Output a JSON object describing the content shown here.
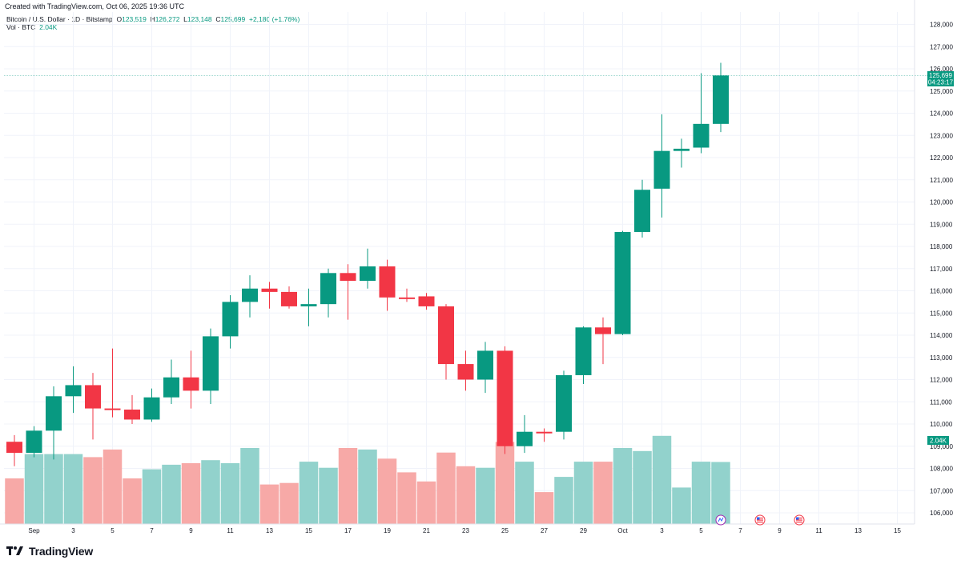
{
  "header": {
    "created_text": "Created with TradingView.com, Oct 06, 2025 19:36 UTC"
  },
  "legend": {
    "symbol": "Bitcoin / U.S. Dollar · 1D · Bitstamp",
    "o_label": "O",
    "o_value": "123,519",
    "h_label": "H",
    "h_value": "126,272",
    "l_label": "L",
    "l_value": "123,148",
    "c_label": "C",
    "c_value": "125,699",
    "change": "+2,180 (+1.76%)",
    "vol_label": "Vol · BTC",
    "vol_value": "2.04K"
  },
  "price_tag": {
    "price": "125,699",
    "countdown": "04:23:17"
  },
  "volume_tag": "2.04K",
  "footer": {
    "brand": "TradingView"
  },
  "colors": {
    "up": "#089981",
    "down": "#f23645",
    "up_vol": "#92d2cc",
    "down_vol": "#f7a9a7",
    "grid": "#f0f3fa",
    "last_line": "#089981"
  },
  "chart_data": {
    "type": "candlestick",
    "symbol": "Bitcoin / U.S. Dollar · 1D · Bitstamp",
    "y_ticks": [
      106000,
      107000,
      108000,
      109000,
      110000,
      111000,
      112000,
      113000,
      114000,
      115000,
      116000,
      117000,
      118000,
      119000,
      120000,
      121000,
      122000,
      123000,
      124000,
      125000,
      126000,
      127000,
      128000
    ],
    "y_tick_labels": [
      "106,000",
      "107,000",
      "108,000",
      "109,000",
      "110,000",
      "111,000",
      "112,000",
      "113,000",
      "114,000",
      "115,000",
      "116,000",
      "117,000",
      "118,000",
      "119,000",
      "120,000",
      "121,000",
      "122,000",
      "123,000",
      "124,000",
      "125,000",
      "126,000",
      "127,000",
      "128,000"
    ],
    "x_ticks": [
      {
        "day": 1,
        "label": "Sep"
      },
      {
        "day": 3,
        "label": "3"
      },
      {
        "day": 5,
        "label": "5"
      },
      {
        "day": 7,
        "label": "7"
      },
      {
        "day": 9,
        "label": "9"
      },
      {
        "day": 11,
        "label": "11"
      },
      {
        "day": 13,
        "label": "13"
      },
      {
        "day": 15,
        "label": "15"
      },
      {
        "day": 17,
        "label": "17"
      },
      {
        "day": 19,
        "label": "19"
      },
      {
        "day": 21,
        "label": "21"
      },
      {
        "day": 23,
        "label": "23"
      },
      {
        "day": 25,
        "label": "25"
      },
      {
        "day": 27,
        "label": "27"
      },
      {
        "day": 29,
        "label": "29"
      },
      {
        "day": 31,
        "label": "Oct"
      },
      {
        "day": 33,
        "label": "3"
      },
      {
        "day": 35,
        "label": "5"
      },
      {
        "day": 37,
        "label": "7"
      },
      {
        "day": 39,
        "label": "9"
      },
      {
        "day": 41,
        "label": "11"
      },
      {
        "day": 43,
        "label": "13"
      },
      {
        "day": 45,
        "label": "15"
      }
    ],
    "candles": [
      {
        "date": "2025-08-31",
        "o": 109200,
        "h": 109500,
        "l": 108100,
        "c": 108700,
        "v": 1.5
      },
      {
        "date": "2025-09-01",
        "o": 108700,
        "h": 109900,
        "l": 108500,
        "c": 109700,
        "v": 2.3
      },
      {
        "date": "2025-09-02",
        "o": 109700,
        "h": 111700,
        "l": 108400,
        "c": 111250,
        "v": 2.3
      },
      {
        "date": "2025-09-03",
        "o": 111250,
        "h": 112600,
        "l": 110500,
        "c": 111750,
        "v": 2.3
      },
      {
        "date": "2025-09-04",
        "o": 111750,
        "h": 112300,
        "l": 109300,
        "c": 110700,
        "v": 2.2
      },
      {
        "date": "2025-09-05",
        "o": 110700,
        "h": 113400,
        "l": 110300,
        "c": 110650,
        "v": 2.45
      },
      {
        "date": "2025-09-06",
        "o": 110650,
        "h": 111300,
        "l": 110000,
        "c": 110200,
        "v": 1.5
      },
      {
        "date": "2025-09-07",
        "o": 110200,
        "h": 111600,
        "l": 110100,
        "c": 111200,
        "v": 1.8
      },
      {
        "date": "2025-09-08",
        "o": 111200,
        "h": 112900,
        "l": 110900,
        "c": 112100,
        "v": 1.95
      },
      {
        "date": "2025-09-09",
        "o": 112100,
        "h": 113300,
        "l": 110700,
        "c": 111500,
        "v": 2.0
      },
      {
        "date": "2025-09-10",
        "o": 111500,
        "h": 114300,
        "l": 110900,
        "c": 113950,
        "v": 2.1
      },
      {
        "date": "2025-09-11",
        "o": 113950,
        "h": 115800,
        "l": 113400,
        "c": 115500,
        "v": 2.0
      },
      {
        "date": "2025-09-12",
        "o": 115500,
        "h": 116700,
        "l": 114800,
        "c": 116100,
        "v": 2.5
      },
      {
        "date": "2025-09-13",
        "o": 116100,
        "h": 116400,
        "l": 115200,
        "c": 115950,
        "v": 1.3
      },
      {
        "date": "2025-09-14",
        "o": 115950,
        "h": 116200,
        "l": 115200,
        "c": 115300,
        "v": 1.35
      },
      {
        "date": "2025-09-15",
        "o": 115300,
        "h": 116100,
        "l": 114400,
        "c": 115400,
        "v": 2.05
      },
      {
        "date": "2025-09-16",
        "o": 115400,
        "h": 117000,
        "l": 114800,
        "c": 116800,
        "v": 1.85
      },
      {
        "date": "2025-09-17",
        "o": 116800,
        "h": 117200,
        "l": 114700,
        "c": 116450,
        "v": 2.5
      },
      {
        "date": "2025-09-18",
        "o": 116450,
        "h": 117900,
        "l": 116100,
        "c": 117100,
        "v": 2.45
      },
      {
        "date": "2025-09-19",
        "o": 117100,
        "h": 117400,
        "l": 115100,
        "c": 115700,
        "v": 2.15
      },
      {
        "date": "2025-09-20",
        "o": 115700,
        "h": 116100,
        "l": 115500,
        "c": 115650,
        "v": 1.7
      },
      {
        "date": "2025-09-21",
        "o": 115750,
        "h": 115900,
        "l": 115150,
        "c": 115300,
        "v": 1.4
      },
      {
        "date": "2025-09-22",
        "o": 115300,
        "h": 115400,
        "l": 112000,
        "c": 112700,
        "v": 2.35
      },
      {
        "date": "2025-09-23",
        "o": 112700,
        "h": 113300,
        "l": 111500,
        "c": 112000,
        "v": 1.9
      },
      {
        "date": "2025-09-24",
        "o": 112000,
        "h": 113700,
        "l": 111400,
        "c": 113300,
        "v": 1.85
      },
      {
        "date": "2025-09-25",
        "o": 113300,
        "h": 113500,
        "l": 108650,
        "c": 109000,
        "v": 2.7
      },
      {
        "date": "2025-09-26",
        "o": 109000,
        "h": 110400,
        "l": 108700,
        "c": 109650,
        "v": 2.05
      },
      {
        "date": "2025-09-27",
        "o": 109650,
        "h": 109800,
        "l": 109200,
        "c": 109600,
        "v": 1.05
      },
      {
        "date": "2025-09-28",
        "o": 109650,
        "h": 112400,
        "l": 109300,
        "c": 112200,
        "v": 1.55
      },
      {
        "date": "2025-09-29",
        "o": 112200,
        "h": 114400,
        "l": 111800,
        "c": 114350,
        "v": 2.05
      },
      {
        "date": "2025-09-30",
        "o": 114350,
        "h": 114800,
        "l": 112700,
        "c": 114050,
        "v": 2.05
      },
      {
        "date": "2025-10-01",
        "o": 114050,
        "h": 118700,
        "l": 114000,
        "c": 118650,
        "v": 2.5
      },
      {
        "date": "2025-10-02",
        "o": 118650,
        "h": 121000,
        "l": 118400,
        "c": 120550,
        "v": 2.4
      },
      {
        "date": "2025-10-03",
        "o": 120600,
        "h": 123950,
        "l": 119300,
        "c": 122300,
        "v": 2.9
      },
      {
        "date": "2025-10-04",
        "o": 122300,
        "h": 122850,
        "l": 121550,
        "c": 122400,
        "v": 1.2
      },
      {
        "date": "2025-10-05",
        "o": 122450,
        "h": 125800,
        "l": 122200,
        "c": 123519,
        "v": 2.05
      },
      {
        "date": "2025-10-06",
        "o": 123519,
        "h": 126272,
        "l": 123148,
        "c": 125699,
        "v": 2.04
      }
    ],
    "last_price": 125699
  }
}
